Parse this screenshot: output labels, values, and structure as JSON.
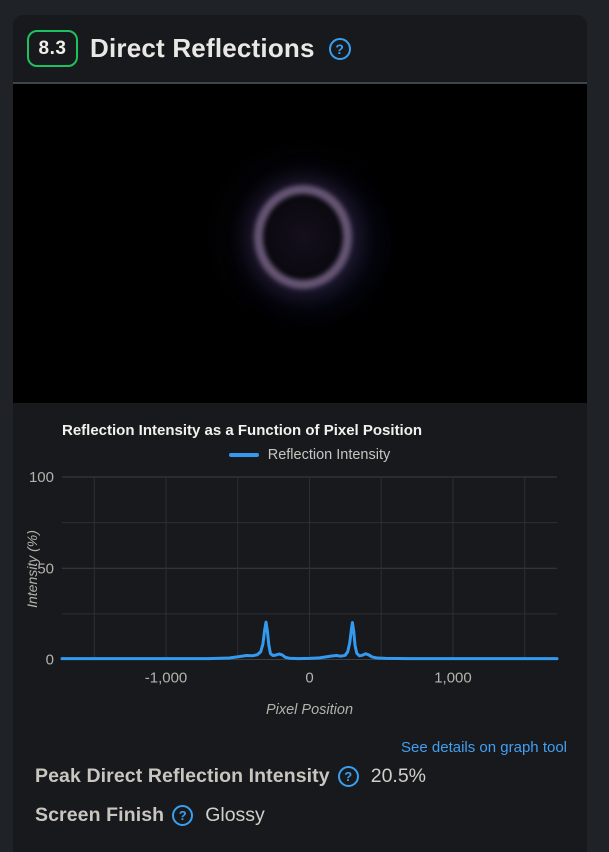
{
  "theme": {
    "page_bg": "#1f2226",
    "card_bg": "#17191c",
    "divider": "#3e454d",
    "score_green": "#1ec15f",
    "help_blue": "#3b9ff0",
    "link_blue": "#429ff2",
    "line_blue": "#339af0",
    "ring_purple": "#6e5c7d",
    "grid_major": "#3b3e42",
    "grid_minor": "#2c2f33"
  },
  "header": {
    "score": "8.3",
    "title": "Direct Reflections",
    "help_icon": "question-circle-icon"
  },
  "photo": {
    "description": "black test photo with purple reflection ring",
    "ring_color": "#6e5c7d"
  },
  "chart_data": {
    "type": "line",
    "title": "Reflection Intensity as a Function of Pixel Position",
    "xlabel": "Pixel Position",
    "ylabel": "Intensity (%)",
    "xlim": [
      -1725,
      1725
    ],
    "ylim": [
      0,
      100
    ],
    "grid": true,
    "legend_position": "top-center",
    "x_gridlines": [
      -1500,
      -1000,
      -500,
      0,
      500,
      1000,
      1500
    ],
    "y_gridlines": [
      0,
      25,
      50,
      75,
      100
    ],
    "x_ticks": [
      {
        "value": -1000,
        "label": "-1,000"
      },
      {
        "value": 0,
        "label": "0"
      },
      {
        "value": 1000,
        "label": "1,000"
      }
    ],
    "y_ticks": [
      {
        "value": 0,
        "label": "0"
      },
      {
        "value": 50,
        "label": "50"
      },
      {
        "value": 100,
        "label": "100"
      }
    ],
    "series": [
      {
        "name": "Reflection Intensity",
        "color": "#339af0",
        "points": [
          [
            -1725,
            0.5
          ],
          [
            -1400,
            0.5
          ],
          [
            -1000,
            0.5
          ],
          [
            -700,
            0.5
          ],
          [
            -560,
            0.8
          ],
          [
            -490,
            1.6
          ],
          [
            -440,
            2.2
          ],
          [
            -400,
            2.0
          ],
          [
            -365,
            2.6
          ],
          [
            -340,
            4.2
          ],
          [
            -325,
            8.5
          ],
          [
            -313,
            16.0
          ],
          [
            -303,
            20.5
          ],
          [
            -294,
            16.0
          ],
          [
            -284,
            8.0
          ],
          [
            -272,
            3.2
          ],
          [
            -255,
            2.2
          ],
          [
            -235,
            2.4
          ],
          [
            -212,
            3.0
          ],
          [
            -192,
            2.6
          ],
          [
            -168,
            1.2
          ],
          [
            -140,
            0.7
          ],
          [
            -80,
            0.5
          ],
          [
            0,
            0.6
          ],
          [
            70,
            0.9
          ],
          [
            115,
            1.4
          ],
          [
            155,
            1.9
          ],
          [
            188,
            2.2
          ],
          [
            218,
            1.8
          ],
          [
            248,
            2.3
          ],
          [
            266,
            4.2
          ],
          [
            280,
            9.0
          ],
          [
            291,
            16.0
          ],
          [
            299,
            20.3
          ],
          [
            308,
            15.5
          ],
          [
            318,
            7.5
          ],
          [
            330,
            3.4
          ],
          [
            348,
            2.0
          ],
          [
            368,
            2.3
          ],
          [
            392,
            3.1
          ],
          [
            412,
            2.6
          ],
          [
            435,
            1.5
          ],
          [
            465,
            0.9
          ],
          [
            530,
            0.6
          ],
          [
            700,
            0.5
          ],
          [
            1100,
            0.5
          ],
          [
            1725,
            0.5
          ]
        ]
      }
    ]
  },
  "footer": {
    "link": "See details on graph tool",
    "rows": [
      {
        "label": "Peak Direct Reflection Intensity",
        "value": "20.5%"
      },
      {
        "label": "Screen Finish",
        "value": "Glossy"
      }
    ]
  }
}
